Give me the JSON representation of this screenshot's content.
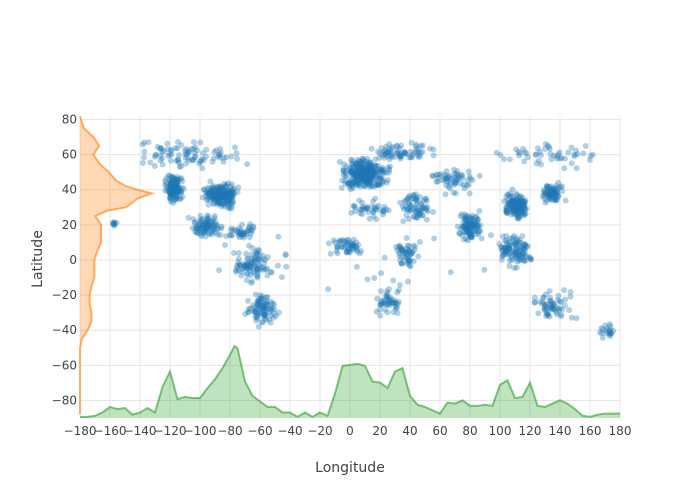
{
  "chart_data": {
    "type": "scatter",
    "title": "",
    "xlabel": "Longitude",
    "ylabel": "Latitude",
    "xlim": [
      -180,
      180
    ],
    "ylim": [
      -90,
      82
    ],
    "grid": true,
    "legend": "none",
    "x_ticks": [
      -180,
      -160,
      -140,
      -120,
      -100,
      -80,
      -60,
      -40,
      -20,
      0,
      20,
      40,
      60,
      80,
      100,
      120,
      140,
      160,
      180
    ],
    "y_ticks": [
      -80,
      -60,
      -40,
      -20,
      0,
      20,
      40,
      60,
      80
    ],
    "x_tick_labels": [
      "−180",
      "−160",
      "−140",
      "−120",
      "−100",
      "−80",
      "−60",
      "−40",
      "−20",
      "0",
      "20",
      "40",
      "60",
      "80",
      "100",
      "120",
      "140",
      "160",
      "180"
    ],
    "y_tick_labels": [
      "−80",
      "−60",
      "−40",
      "−20",
      "0",
      "20",
      "40",
      "60",
      "80"
    ],
    "colors": {
      "scatter": "#1f77b4",
      "lat_histogram": "#ff7f0e",
      "lon_histogram": "#2ca02c"
    },
    "scatter_clusters": [
      {
        "region": "north-america-west",
        "lon": [
          -125,
          -110
        ],
        "lat": [
          32,
          50
        ],
        "count": 160
      },
      {
        "region": "north-america-east",
        "lon": [
          -100,
          -72
        ],
        "lat": [
          28,
          46
        ],
        "count": 220
      },
      {
        "region": "canada-alaska",
        "lon": [
          -165,
          -60
        ],
        "lat": [
          48,
          70
        ],
        "count": 90
      },
      {
        "region": "mexico-central-america",
        "lon": [
          -110,
          -80
        ],
        "lat": [
          10,
          28
        ],
        "count": 90
      },
      {
        "region": "caribbean",
        "lon": [
          -85,
          -60
        ],
        "lat": [
          10,
          22
        ],
        "count": 40
      },
      {
        "region": "south-america-north",
        "lon": [
          -80,
          -50
        ],
        "lat": [
          -15,
          10
        ],
        "count": 90
      },
      {
        "region": "south-america-south",
        "lon": [
          -72,
          -45
        ],
        "lat": [
          -40,
          -15
        ],
        "count": 90
      },
      {
        "region": "europe",
        "lon": [
          -10,
          30
        ],
        "lat": [
          38,
          60
        ],
        "count": 320
      },
      {
        "region": "scandinavia-russia",
        "lon": [
          5,
          60
        ],
        "lat": [
          55,
          70
        ],
        "count": 70
      },
      {
        "region": "africa-west",
        "lon": [
          -17,
          15
        ],
        "lat": [
          0,
          15
        ],
        "count": 50
      },
      {
        "region": "africa-east",
        "lon": [
          25,
          50
        ],
        "lat": [
          -10,
          15
        ],
        "count": 50
      },
      {
        "region": "africa-south",
        "lon": [
          15,
          35
        ],
        "lat": [
          -35,
          -10
        ],
        "count": 50
      },
      {
        "region": "north-africa",
        "lon": [
          -10,
          35
        ],
        "lat": [
          20,
          37
        ],
        "count": 40
      },
      {
        "region": "middle-east",
        "lon": [
          30,
          60
        ],
        "lat": [
          20,
          40
        ],
        "count": 70
      },
      {
        "region": "central-asia",
        "lon": [
          50,
          90
        ],
        "lat": [
          35,
          55
        ],
        "count": 60
      },
      {
        "region": "india",
        "lon": [
          70,
          90
        ],
        "lat": [
          8,
          30
        ],
        "count": 110
      },
      {
        "region": "china",
        "lon": [
          100,
          122
        ],
        "lat": [
          20,
          42
        ],
        "count": 140
      },
      {
        "region": "japan-korea",
        "lon": [
          125,
          145
        ],
        "lat": [
          31,
          45
        ],
        "count": 80
      },
      {
        "region": "southeast-asia",
        "lon": [
          95,
          125
        ],
        "lat": [
          -8,
          20
        ],
        "count": 110
      },
      {
        "region": "siberia",
        "lon": [
          80,
          180
        ],
        "lat": [
          50,
          70
        ],
        "count": 50
      },
      {
        "region": "australia",
        "lon": [
          115,
          153
        ],
        "lat": [
          -38,
          -12
        ],
        "count": 60
      },
      {
        "region": "new-zealand",
        "lon": [
          166,
          178
        ],
        "lat": [
          -46,
          -36
        ],
        "count": 20
      },
      {
        "region": "pacific-islands",
        "lon": [
          -180,
          180
        ],
        "lat": [
          -25,
          25
        ],
        "count": 30
      },
      {
        "region": "hawaii",
        "lon": [
          -160,
          -155
        ],
        "lat": [
          19,
          22
        ],
        "count": 8
      }
    ],
    "lat_histogram": {
      "lat": [
        -88,
        -80,
        -70,
        -60,
        -50,
        -45,
        -40,
        -35,
        -30,
        -25,
        -20,
        -15,
        -10,
        -5,
        0,
        5,
        10,
        15,
        20,
        25,
        28,
        30,
        35,
        38,
        40,
        42,
        45,
        50,
        55,
        60,
        65,
        70,
        75,
        82
      ],
      "counts": [
        0,
        0,
        0,
        0,
        0,
        2,
        8,
        12,
        12,
        10,
        10,
        12,
        15,
        15,
        15,
        18,
        22,
        22,
        22,
        16,
        28,
        48,
        60,
        75,
        60,
        48,
        38,
        30,
        20,
        14,
        20,
        14,
        4,
        0
      ]
    },
    "lon_histogram": {
      "lon": [
        -180,
        -175,
        -170,
        -165,
        -160,
        -155,
        -150,
        -145,
        -140,
        -135,
        -130,
        -125,
        -120,
        -115,
        -110,
        -105,
        -100,
        -95,
        -90,
        -85,
        -80,
        -77,
        -75,
        -70,
        -65,
        -60,
        -55,
        -50,
        -45,
        -40,
        -35,
        -30,
        -25,
        -20,
        -15,
        -10,
        -5,
        0,
        5,
        10,
        15,
        20,
        25,
        30,
        35,
        40,
        45,
        50,
        55,
        60,
        65,
        70,
        75,
        80,
        85,
        90,
        95,
        100,
        105,
        110,
        115,
        120,
        125,
        130,
        135,
        140,
        145,
        150,
        155,
        160,
        165,
        170,
        175,
        180
      ],
      "counts": [
        1,
        1,
        2,
        5,
        10,
        8,
        9,
        3,
        5,
        9,
        5,
        28,
        42,
        17,
        19,
        18,
        18,
        27,
        35,
        45,
        57,
        65,
        63,
        33,
        20,
        15,
        10,
        10,
        5,
        5,
        1,
        5,
        1,
        5,
        2,
        22,
        47,
        48,
        49,
        47,
        33,
        32,
        27,
        42,
        45,
        20,
        12,
        10,
        7,
        4,
        14,
        13,
        16,
        11,
        11,
        12,
        11,
        30,
        34,
        18,
        19,
        32,
        11,
        10,
        13,
        16,
        13,
        8,
        2,
        1,
        3,
        4,
        4,
        4
      ]
    }
  }
}
